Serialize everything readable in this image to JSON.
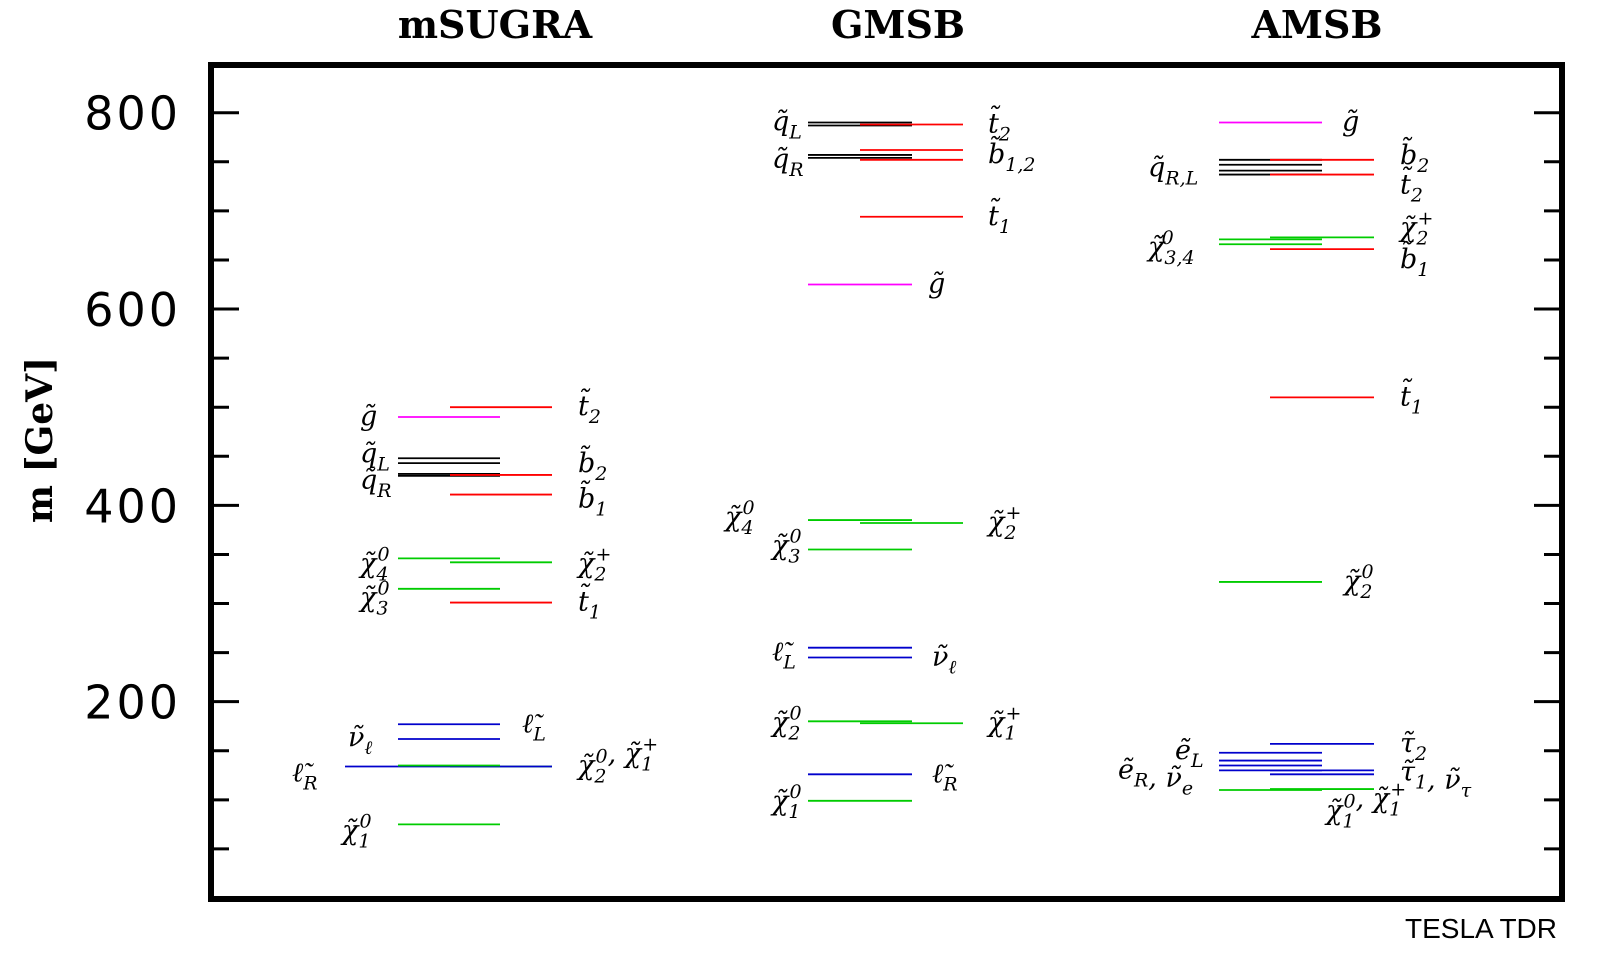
{
  "chart_data": {
    "type": "level-diagram",
    "title": "",
    "ylabel": "m [GeV]",
    "ylim": [
      0,
      850
    ],
    "yticks": [
      200,
      400,
      600,
      800
    ],
    "ytick_labels": [
      "200",
      "400",
      "600",
      "800"
    ],
    "minor_tick_step": 50,
    "grid": false,
    "credit": "TESLA TDR",
    "colors": {
      "gluino": "#ff00ff",
      "squark": "#000000",
      "third_gen_squark": "#ff0000",
      "gaugino": "#00cc00",
      "slepton": "#0000cc"
    },
    "scenarios": [
      {
        "name": "mSUGRA",
        "levels": [
          {
            "type": "gluino",
            "column": "left",
            "value": 490
          },
          {
            "type": "squark",
            "column": "left",
            "value": 448
          },
          {
            "type": "squark",
            "column": "left",
            "value": 443
          },
          {
            "type": "squark",
            "column": "left",
            "value": 432
          },
          {
            "type": "squark",
            "column": "left",
            "value": 430
          },
          {
            "type": "third_gen_squark",
            "column": "right",
            "value": 500
          },
          {
            "type": "third_gen_squark",
            "column": "right",
            "value": 431
          },
          {
            "type": "third_gen_squark",
            "column": "right",
            "value": 411
          },
          {
            "type": "third_gen_squark",
            "column": "right",
            "value": 301
          },
          {
            "type": "gaugino",
            "column": "left",
            "value": 346
          },
          {
            "type": "gaugino",
            "column": "left",
            "value": 315
          },
          {
            "type": "gaugino",
            "column": "right",
            "value": 342
          },
          {
            "type": "gaugino",
            "column": "right",
            "value": 134
          },
          {
            "type": "gaugino",
            "column": "left",
            "value": 75
          },
          {
            "type": "slepton",
            "column": "left",
            "value": 177
          },
          {
            "type": "slepton",
            "column": "left",
            "value": 162
          },
          {
            "type": "slepton",
            "column": "wide-left",
            "value": 134
          },
          {
            "type": "gaugino",
            "column": "left",
            "value": 135
          }
        ],
        "labels": [
          {
            "text": "g̃",
            "column": "left",
            "value": 490
          },
          {
            "text": "q̃_L",
            "column": "left",
            "value": 452
          },
          {
            "text": "q̃_R",
            "column": "left",
            "value": 425
          },
          {
            "text": "t̃_2",
            "column": "right",
            "value": 500
          },
          {
            "text": "b̃_2",
            "column": "right",
            "value": 442
          },
          {
            "text": "b̃_1",
            "column": "right",
            "value": 406
          },
          {
            "text": "χ̃_4^0",
            "column": "left",
            "value": 340
          },
          {
            "text": "χ̃_3^0",
            "column": "left",
            "value": 305
          },
          {
            "text": "χ̃_2^+",
            "column": "right",
            "value": 340
          },
          {
            "text": "t̃_1",
            "column": "right",
            "value": 301
          },
          {
            "text": "ν̃_ℓ",
            "column": "left",
            "value": 163
          },
          {
            "text": "ℓ̃_L",
            "column": "right",
            "value": 177
          },
          {
            "text": "ℓ̃_R",
            "column": "far-left",
            "value": 127
          },
          {
            "text": "χ̃_2^0, χ̃_1^+",
            "column": "right",
            "value": 134
          },
          {
            "text": "χ̃_1^0",
            "column": "left",
            "value": 68
          }
        ]
      },
      {
        "name": "GMSB",
        "levels": [
          {
            "type": "squark",
            "column": "left",
            "value": 790
          },
          {
            "type": "squark",
            "column": "left",
            "value": 787
          },
          {
            "type": "squark",
            "column": "left",
            "value": 757
          },
          {
            "type": "squark",
            "column": "left",
            "value": 754
          },
          {
            "type": "third_gen_squark",
            "column": "right",
            "value": 788
          },
          {
            "type": "third_gen_squark",
            "column": "right",
            "value": 762
          },
          {
            "type": "third_gen_squark",
            "column": "right",
            "value": 752
          },
          {
            "type": "third_gen_squark",
            "column": "right",
            "value": 694
          },
          {
            "type": "gluino",
            "column": "left",
            "value": 625
          },
          {
            "type": "gaugino",
            "column": "left",
            "value": 385
          },
          {
            "type": "gaugino",
            "column": "left",
            "value": 355
          },
          {
            "type": "gaugino",
            "column": "right",
            "value": 382
          },
          {
            "type": "slepton",
            "column": "left",
            "value": 255
          },
          {
            "type": "slepton",
            "column": "left",
            "value": 245
          },
          {
            "type": "gaugino",
            "column": "left",
            "value": 180
          },
          {
            "type": "gaugino",
            "column": "right",
            "value": 178
          },
          {
            "type": "slepton",
            "column": "left",
            "value": 126
          },
          {
            "type": "gaugino",
            "column": "left",
            "value": 99
          }
        ],
        "labels": [
          {
            "text": "q̃_L",
            "column": "left",
            "value": 790
          },
          {
            "text": "q̃_R",
            "column": "left",
            "value": 752
          },
          {
            "text": "t̃_2",
            "column": "right",
            "value": 788
          },
          {
            "text": "b̃_1,2",
            "column": "right",
            "value": 757
          },
          {
            "text": "t̃_1",
            "column": "right",
            "value": 694
          },
          {
            "text": "g̃",
            "column": "right",
            "value": 625
          },
          {
            "text": "χ̃_4^0",
            "column": "left",
            "value": 387
          },
          {
            "text": "χ̃_3^0",
            "column": "left",
            "value": 358
          },
          {
            "text": "χ̃_2^+",
            "column": "right",
            "value": 382
          },
          {
            "text": "ℓ̃_L",
            "column": "left",
            "value": 250
          },
          {
            "text": "ν̃_ℓ",
            "column": "right",
            "value": 245
          },
          {
            "text": "χ̃_2^0",
            "column": "left",
            "value": 178
          },
          {
            "text": "χ̃_1^+",
            "column": "right",
            "value": 178
          },
          {
            "text": "ℓ̃_R",
            "column": "right",
            "value": 126
          },
          {
            "text": "χ̃_1^0",
            "column": "left",
            "value": 98
          }
        ]
      },
      {
        "name": "AMSB",
        "levels": [
          {
            "type": "gluino",
            "column": "left",
            "value": 790
          },
          {
            "type": "squark",
            "column": "left",
            "value": 752
          },
          {
            "type": "squark",
            "column": "left",
            "value": 747
          },
          {
            "type": "squark",
            "column": "left",
            "value": 741
          },
          {
            "type": "squark",
            "column": "left",
            "value": 737
          },
          {
            "type": "third_gen_squark",
            "column": "right",
            "value": 752
          },
          {
            "type": "third_gen_squark",
            "column": "right",
            "value": 737
          },
          {
            "type": "third_gen_squark",
            "column": "right",
            "value": 661
          },
          {
            "type": "third_gen_squark",
            "column": "right",
            "value": 510
          },
          {
            "type": "gaugino",
            "column": "left",
            "value": 671
          },
          {
            "type": "gaugino",
            "column": "left",
            "value": 666
          },
          {
            "type": "gaugino",
            "column": "right",
            "value": 673
          },
          {
            "type": "gaugino",
            "column": "left",
            "value": 322
          },
          {
            "type": "slepton",
            "column": "left",
            "value": 148
          },
          {
            "type": "slepton",
            "column": "left",
            "value": 140
          },
          {
            "type": "slepton",
            "column": "left",
            "value": 135
          },
          {
            "type": "slepton",
            "column": "left",
            "value": 130
          },
          {
            "type": "slepton",
            "column": "right",
            "value": 157
          },
          {
            "type": "slepton",
            "column": "right",
            "value": 130
          },
          {
            "type": "slepton",
            "column": "right",
            "value": 126
          },
          {
            "type": "gaugino",
            "column": "left",
            "value": 110
          },
          {
            "type": "gaugino",
            "column": "right",
            "value": 111
          }
        ],
        "labels": [
          {
            "text": "g̃",
            "column": "right",
            "value": 790
          },
          {
            "text": "q̃_R,L",
            "column": "left",
            "value": 743
          },
          {
            "text": "b̃_2",
            "column": "right",
            "value": 756
          },
          {
            "text": "t̃_2",
            "column": "right",
            "value": 726
          },
          {
            "text": "χ̃_2^+",
            "column": "right",
            "value": 682
          },
          {
            "text": "χ̃_3,4^0",
            "column": "left",
            "value": 662
          },
          {
            "text": "b̃_1",
            "column": "right",
            "value": 650
          },
          {
            "text": "t̃_1",
            "column": "right",
            "value": 510
          },
          {
            "text": "χ̃_2^0",
            "column": "right",
            "value": 322
          },
          {
            "text": "ẽ_L",
            "column": "left",
            "value": 150
          },
          {
            "text": "ẽ_R, ν̃_e",
            "column": "left",
            "value": 130
          },
          {
            "text": "τ̃_2",
            "column": "right",
            "value": 157
          },
          {
            "text": "τ̃_1, ν̃_τ",
            "column": "right",
            "value": 128
          },
          {
            "text": "χ̃_1^0, χ̃_1^+",
            "column": "right",
            "value": 88
          }
        ]
      }
    ]
  }
}
